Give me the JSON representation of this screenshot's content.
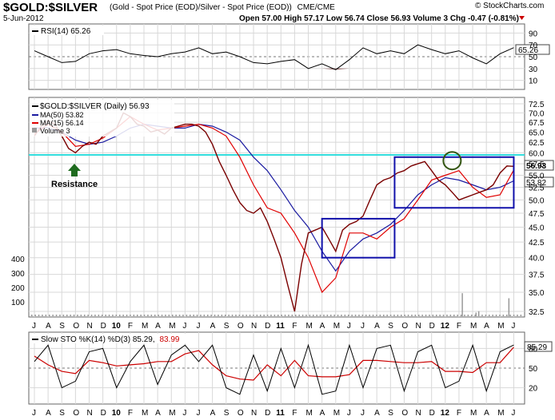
{
  "header": {
    "title": "$GOLD:$SILVER",
    "subtitle": "(Gold - Spot Price (EOD)/Silver - Spot Price (EOD))",
    "exchange": "CME/CME",
    "date": "5-Jun-2012",
    "ohlc": "Open 57.00  High 57.17  Low 56.74  Close 56.93  Volume 3  Chg -0.47 (-0.81%)",
    "watermark": "© StockCharts.com"
  },
  "rsi_panel": {
    "label": "RSI(14) 65.26",
    "value_tag": "65.26",
    "y_ticks": [
      "90",
      "70",
      "50",
      "30",
      "10"
    ]
  },
  "main_panel": {
    "legend_title": "$GOLD:$SILVER (Daily) 56.93",
    "legend_ma50": "MA(50) 53.82",
    "legend_ma15": "MA(15) 56.14",
    "legend_volume": "Volume 3",
    "price_tags": [
      "56.93",
      "53.82"
    ],
    "resistance_label": "Resistance",
    "y_ticks": [
      "72.5",
      "70.0",
      "67.5",
      "65.0",
      "62.5",
      "60.0",
      "57.5",
      "55.0",
      "52.5",
      "50.0",
      "47.5",
      "45.0",
      "42.5",
      "40.0",
      "37.5",
      "35.0",
      "32.5"
    ],
    "volume_ticks": [
      "400",
      "300",
      "200",
      "100"
    ]
  },
  "sto_panel": {
    "label_prefix": "Slow STO %K(14) %D(3) 85.29,",
    "label_d": "83.99",
    "value_tag": "85.29",
    "y_ticks": [
      "80",
      "50",
      "20"
    ]
  },
  "x_axis": {
    "labels": [
      "J",
      "A",
      "S",
      "O",
      "N",
      "D",
      "10",
      "F",
      "M",
      "A",
      "M",
      "J",
      "J",
      "A",
      "S",
      "O",
      "N",
      "D",
      "11",
      "F",
      "M",
      "A",
      "M",
      "J",
      "J",
      "A",
      "S",
      "O",
      "N",
      "D",
      "12",
      "F",
      "M",
      "A",
      "M",
      "J"
    ]
  },
  "colors": {
    "price": "#7a0000",
    "ma15": "#e00000",
    "ma50": "#1a1aa0",
    "resistance": "#33dddd",
    "box": "#1111aa",
    "circle": "#335511",
    "arrow": "#1e6b1e",
    "rsi_fill": "#8a5a5a",
    "volume": "#999999"
  },
  "chart_data": {
    "type": "line",
    "title": "$GOLD:$SILVER",
    "x_unit": "months from Jul 2009 to Jun 2012",
    "xlabel": "",
    "ylabel": "",
    "ylim": [
      32.5,
      72.5
    ],
    "log_scale": true,
    "grid": true,
    "legend_placement": "top-left",
    "resistance_level": 59.5,
    "series": [
      {
        "name": "$GOLD:$SILVER (Daily) 56.93",
        "x": [
          0,
          0.5,
          1,
          1.5,
          2,
          2.5,
          3,
          3.5,
          4,
          4.5,
          5,
          5.5,
          6,
          6.5,
          7,
          7.5,
          8,
          8.5,
          9,
          9.5,
          10,
          10.5,
          11,
          11.5,
          12,
          12.5,
          13,
          13.5,
          14,
          14.5,
          15,
          15.5,
          16,
          16.5,
          17,
          17.5,
          18,
          18.5,
          19,
          19.5,
          20,
          20.5,
          21,
          21.5,
          22,
          22.5,
          23,
          23.5,
          24,
          24.5,
          25,
          25.5,
          26,
          26.5,
          27,
          27.5,
          28,
          28.5,
          29,
          29.5,
          30,
          30.5,
          31,
          31.5,
          32,
          32.5,
          33,
          33.5,
          34,
          34.5,
          35
        ],
        "values": [
          64,
          66.5,
          68,
          67,
          64,
          61,
          60,
          61.5,
          62.5,
          62,
          64,
          65,
          66,
          70,
          69,
          67,
          66.5,
          65,
          65.5,
          64.5,
          66,
          66.5,
          67,
          67,
          66.5,
          65,
          62,
          58,
          55,
          52,
          49.5,
          48,
          47.5,
          48.5,
          46,
          43,
          40,
          36,
          32.5,
          39,
          44,
          44.5,
          45,
          43,
          41,
          44.5,
          45.5,
          46,
          47,
          50,
          53,
          54,
          54.5,
          55.5,
          56,
          57,
          57.5,
          58,
          56,
          54,
          53,
          51.5,
          50,
          50.5,
          51,
          51.5,
          52,
          53,
          55.5,
          57,
          56.93
        ]
      },
      {
        "name": "MA(50) 53.82",
        "x": [
          0,
          1,
          2,
          3,
          4,
          5,
          6,
          7,
          8,
          9,
          10,
          11,
          12,
          13,
          14,
          15,
          16,
          17,
          18,
          19,
          20,
          21,
          22,
          23,
          24,
          25,
          26,
          27,
          28,
          29,
          30,
          31,
          32,
          33,
          34,
          35
        ],
        "values": [
          66,
          66,
          65,
          63,
          62,
          62.5,
          64,
          66,
          67,
          66.5,
          66,
          66,
          67,
          66.5,
          65,
          63,
          59,
          56,
          52,
          48,
          45,
          41,
          38,
          41,
          43,
          44,
          45.5,
          48,
          51,
          53,
          54.5,
          54,
          53,
          52,
          52.5,
          53.82
        ]
      },
      {
        "name": "MA(15) 56.14",
        "x": [
          0,
          1,
          2,
          3,
          4,
          5,
          6,
          7,
          8,
          9,
          10,
          11,
          12,
          13,
          14,
          15,
          16,
          17,
          18,
          19,
          20,
          21,
          22,
          23,
          24,
          25,
          26,
          27,
          28,
          29,
          30,
          31,
          32,
          33,
          34,
          35
        ],
        "values": [
          64.5,
          67,
          65,
          61.5,
          62,
          63.5,
          66,
          69,
          67,
          65.5,
          66,
          66.5,
          67,
          66,
          64,
          59,
          53,
          48.5,
          47.5,
          44,
          40,
          35,
          37,
          44,
          44,
          43,
          45,
          46.5,
          50,
          54,
          55,
          56,
          52.5,
          50.5,
          51,
          56.14
        ]
      }
    ],
    "rsi": {
      "name": "RSI(14) 65.26",
      "ylim": [
        0,
        100
      ],
      "levels": [
        70,
        50,
        30
      ],
      "x": [
        0,
        1,
        2,
        3,
        4,
        5,
        6,
        7,
        8,
        9,
        10,
        11,
        12,
        13,
        14,
        15,
        16,
        17,
        18,
        19,
        20,
        21,
        22,
        23,
        24,
        25,
        26,
        27,
        28,
        29,
        30,
        31,
        32,
        33,
        34,
        35
      ],
      "values": [
        60,
        50,
        40,
        42,
        55,
        60,
        62,
        55,
        52,
        50,
        55,
        58,
        65,
        55,
        58,
        50,
        40,
        38,
        42,
        45,
        30,
        38,
        28,
        45,
        65,
        55,
        60,
        55,
        70,
        62,
        55,
        60,
        48,
        38,
        55,
        65.26
      ]
    },
    "slow_sto": {
      "name": "Slow STO %K(14) %D(3)",
      "ylim": [
        0,
        100
      ],
      "levels": [
        80,
        50,
        20
      ],
      "k_last": 85.29,
      "d_last": 83.99,
      "x": [
        0,
        1,
        2,
        3,
        4,
        5,
        6,
        7,
        8,
        9,
        10,
        11,
        12,
        13,
        14,
        15,
        16,
        17,
        18,
        19,
        20,
        21,
        22,
        23,
        24,
        25,
        26,
        27,
        28,
        29,
        30,
        31,
        32,
        33,
        34,
        35
      ],
      "values": [
        60,
        85,
        20,
        30,
        75,
        80,
        20,
        60,
        85,
        25,
        70,
        85,
        60,
        85,
        20,
        10,
        70,
        15,
        80,
        20,
        85,
        10,
        15,
        85,
        20,
        80,
        85,
        15,
        75,
        85,
        20,
        30,
        85,
        15,
        75,
        85.29
      ]
    },
    "volume_spikes": [
      {
        "x": 31.2,
        "value": 160
      },
      {
        "x": 32.2,
        "value": 25
      },
      {
        "x": 32.4,
        "value": 35
      },
      {
        "x": 34.6,
        "value": 125
      }
    ],
    "annotations": {
      "resistance_label": "Resistance",
      "boxes": [
        {
          "x": [
            21,
            26.3
          ],
          "y": [
            40,
            46.5
          ]
        },
        {
          "x": [
            26.3,
            35
          ],
          "y": [
            48.5,
            59
          ]
        }
      ],
      "circle": {
        "x": 30.5,
        "y": 58.2
      }
    }
  }
}
